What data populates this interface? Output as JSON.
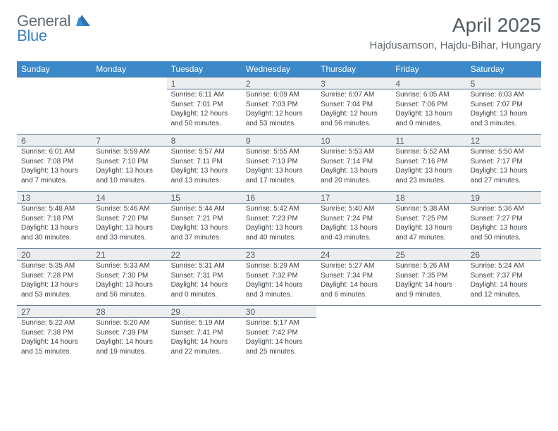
{
  "logo": {
    "word1": "General",
    "word2": "Blue"
  },
  "title": "April 2025",
  "location": "Hajdusamson, Hajdu-Bihar, Hungary",
  "colors": {
    "header_bg": "#3b89c9",
    "header_text": "#ffffff",
    "daynum_bg": "#ebedef",
    "rule": "#4a6a8a",
    "logo_gray": "#606a72",
    "logo_blue": "#3a7fbf",
    "title_color": "#505a60",
    "loc_color": "#636b71",
    "body_text": "#3a3f44"
  },
  "day_headers": [
    "Sunday",
    "Monday",
    "Tuesday",
    "Wednesday",
    "Thursday",
    "Friday",
    "Saturday"
  ],
  "weeks": [
    [
      null,
      null,
      {
        "n": "1",
        "sr": "Sunrise: 6:11 AM",
        "ss": "Sunset: 7:01 PM",
        "dl": "Daylight: 12 hours and 50 minutes."
      },
      {
        "n": "2",
        "sr": "Sunrise: 6:09 AM",
        "ss": "Sunset: 7:03 PM",
        "dl": "Daylight: 12 hours and 53 minutes."
      },
      {
        "n": "3",
        "sr": "Sunrise: 6:07 AM",
        "ss": "Sunset: 7:04 PM",
        "dl": "Daylight: 12 hours and 56 minutes."
      },
      {
        "n": "4",
        "sr": "Sunrise: 6:05 AM",
        "ss": "Sunset: 7:06 PM",
        "dl": "Daylight: 13 hours and 0 minutes."
      },
      {
        "n": "5",
        "sr": "Sunrise: 6:03 AM",
        "ss": "Sunset: 7:07 PM",
        "dl": "Daylight: 13 hours and 3 minutes."
      }
    ],
    [
      {
        "n": "6",
        "sr": "Sunrise: 6:01 AM",
        "ss": "Sunset: 7:08 PM",
        "dl": "Daylight: 13 hours and 7 minutes."
      },
      {
        "n": "7",
        "sr": "Sunrise: 5:59 AM",
        "ss": "Sunset: 7:10 PM",
        "dl": "Daylight: 13 hours and 10 minutes."
      },
      {
        "n": "8",
        "sr": "Sunrise: 5:57 AM",
        "ss": "Sunset: 7:11 PM",
        "dl": "Daylight: 13 hours and 13 minutes."
      },
      {
        "n": "9",
        "sr": "Sunrise: 5:55 AM",
        "ss": "Sunset: 7:13 PM",
        "dl": "Daylight: 13 hours and 17 minutes."
      },
      {
        "n": "10",
        "sr": "Sunrise: 5:53 AM",
        "ss": "Sunset: 7:14 PM",
        "dl": "Daylight: 13 hours and 20 minutes."
      },
      {
        "n": "11",
        "sr": "Sunrise: 5:52 AM",
        "ss": "Sunset: 7:16 PM",
        "dl": "Daylight: 13 hours and 23 minutes."
      },
      {
        "n": "12",
        "sr": "Sunrise: 5:50 AM",
        "ss": "Sunset: 7:17 PM",
        "dl": "Daylight: 13 hours and 27 minutes."
      }
    ],
    [
      {
        "n": "13",
        "sr": "Sunrise: 5:48 AM",
        "ss": "Sunset: 7:18 PM",
        "dl": "Daylight: 13 hours and 30 minutes."
      },
      {
        "n": "14",
        "sr": "Sunrise: 5:46 AM",
        "ss": "Sunset: 7:20 PM",
        "dl": "Daylight: 13 hours and 33 minutes."
      },
      {
        "n": "15",
        "sr": "Sunrise: 5:44 AM",
        "ss": "Sunset: 7:21 PM",
        "dl": "Daylight: 13 hours and 37 minutes."
      },
      {
        "n": "16",
        "sr": "Sunrise: 5:42 AM",
        "ss": "Sunset: 7:23 PM",
        "dl": "Daylight: 13 hours and 40 minutes."
      },
      {
        "n": "17",
        "sr": "Sunrise: 5:40 AM",
        "ss": "Sunset: 7:24 PM",
        "dl": "Daylight: 13 hours and 43 minutes."
      },
      {
        "n": "18",
        "sr": "Sunrise: 5:38 AM",
        "ss": "Sunset: 7:25 PM",
        "dl": "Daylight: 13 hours and 47 minutes."
      },
      {
        "n": "19",
        "sr": "Sunrise: 5:36 AM",
        "ss": "Sunset: 7:27 PM",
        "dl": "Daylight: 13 hours and 50 minutes."
      }
    ],
    [
      {
        "n": "20",
        "sr": "Sunrise: 5:35 AM",
        "ss": "Sunset: 7:28 PM",
        "dl": "Daylight: 13 hours and 53 minutes."
      },
      {
        "n": "21",
        "sr": "Sunrise: 5:33 AM",
        "ss": "Sunset: 7:30 PM",
        "dl": "Daylight: 13 hours and 56 minutes."
      },
      {
        "n": "22",
        "sr": "Sunrise: 5:31 AM",
        "ss": "Sunset: 7:31 PM",
        "dl": "Daylight: 14 hours and 0 minutes."
      },
      {
        "n": "23",
        "sr": "Sunrise: 5:29 AM",
        "ss": "Sunset: 7:32 PM",
        "dl": "Daylight: 14 hours and 3 minutes."
      },
      {
        "n": "24",
        "sr": "Sunrise: 5:27 AM",
        "ss": "Sunset: 7:34 PM",
        "dl": "Daylight: 14 hours and 6 minutes."
      },
      {
        "n": "25",
        "sr": "Sunrise: 5:26 AM",
        "ss": "Sunset: 7:35 PM",
        "dl": "Daylight: 14 hours and 9 minutes."
      },
      {
        "n": "26",
        "sr": "Sunrise: 5:24 AM",
        "ss": "Sunset: 7:37 PM",
        "dl": "Daylight: 14 hours and 12 minutes."
      }
    ],
    [
      {
        "n": "27",
        "sr": "Sunrise: 5:22 AM",
        "ss": "Sunset: 7:38 PM",
        "dl": "Daylight: 14 hours and 15 minutes."
      },
      {
        "n": "28",
        "sr": "Sunrise: 5:20 AM",
        "ss": "Sunset: 7:39 PM",
        "dl": "Daylight: 14 hours and 19 minutes."
      },
      {
        "n": "29",
        "sr": "Sunrise: 5:19 AM",
        "ss": "Sunset: 7:41 PM",
        "dl": "Daylight: 14 hours and 22 minutes."
      },
      {
        "n": "30",
        "sr": "Sunrise: 5:17 AM",
        "ss": "Sunset: 7:42 PM",
        "dl": "Daylight: 14 hours and 25 minutes."
      },
      null,
      null,
      null
    ]
  ]
}
